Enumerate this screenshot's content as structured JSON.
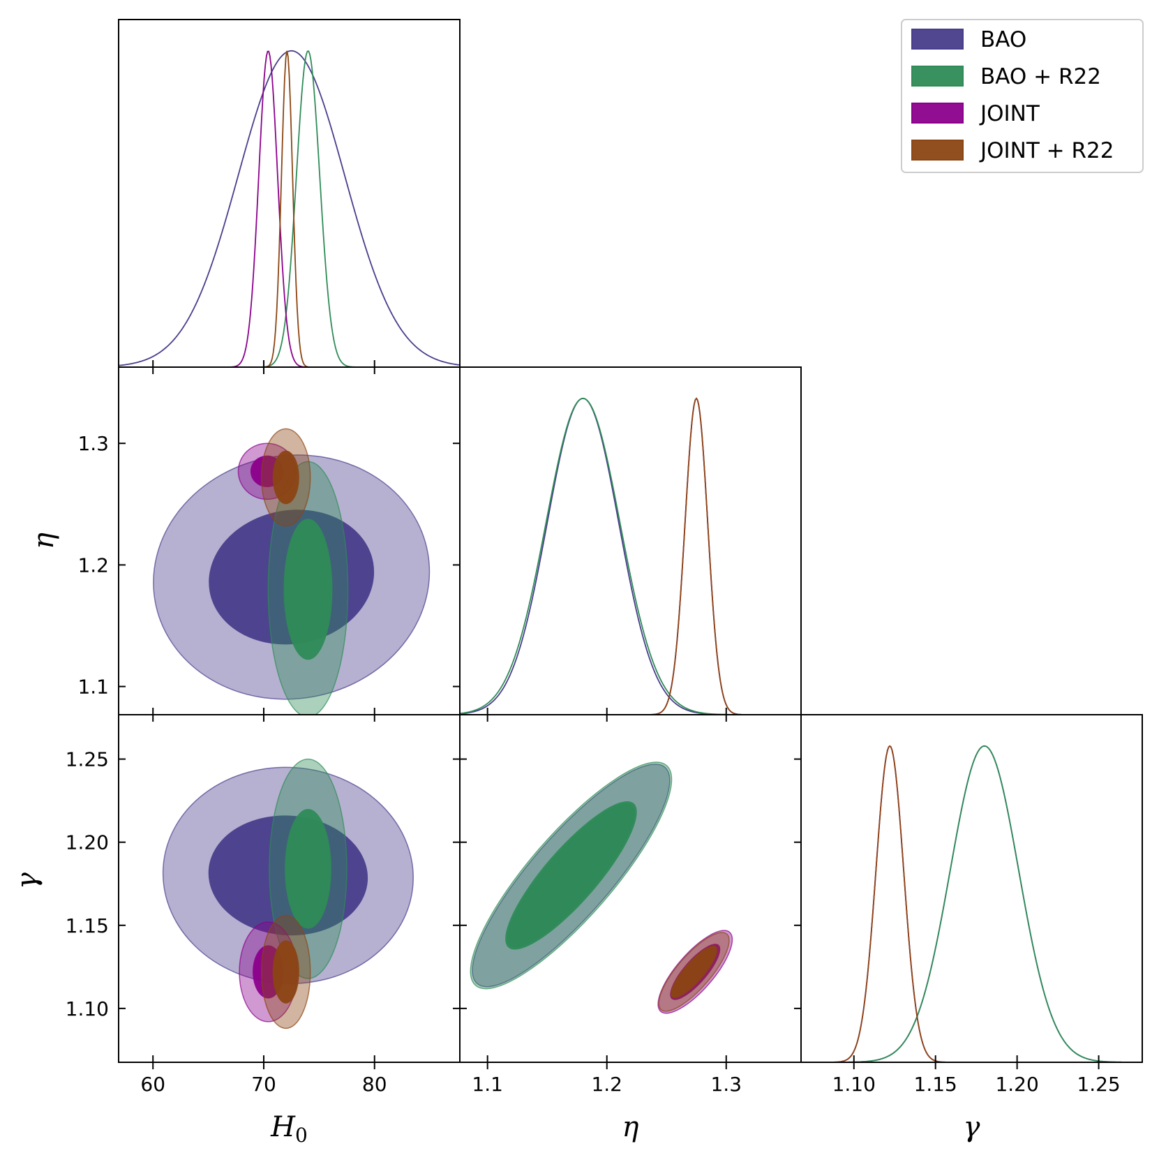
{
  "chart_data": {
    "type": "corner",
    "parameters": [
      {
        "key": "H0",
        "label": "H",
        "subscript": "0",
        "range": [
          56.9,
          87.7
        ],
        "ticks": [
          60,
          70,
          80
        ],
        "tick_labels": [
          "60",
          "70",
          "80"
        ]
      },
      {
        "key": "eta",
        "label": "η",
        "subscript": "",
        "range": [
          1.0768,
          1.3627
        ],
        "ticks": [
          1.1,
          1.2,
          1.3
        ],
        "tick_labels": [
          "1.1",
          "1.2",
          "1.3"
        ]
      },
      {
        "key": "gamma",
        "label": "γ",
        "subscript": "",
        "range": [
          1.0676,
          1.2767
        ],
        "ticks": [
          1.1,
          1.15,
          1.2,
          1.25
        ],
        "tick_labels": [
          "1.10",
          "1.15",
          "1.20",
          "1.25"
        ]
      }
    ],
    "series": [
      {
        "name": "BAO",
        "color": "#483d8b",
        "mean": {
          "H0": 72.5,
          "eta": 1.18,
          "gamma": 1.18
        },
        "sigma": {
          "H0": 4.8,
          "eta": 0.03,
          "gamma": 0.021
        },
        "contours": {
          "H0-eta": {
            "cx": 72.5,
            "cy": 1.19,
            "r68": [
              7.5,
              0.055
            ],
            "r95": [
              12.5,
              0.1
            ],
            "angle": -10
          },
          "H0-gamma": {
            "cx": 72.2,
            "cy": 1.18,
            "r68": [
              7.2,
              0.036
            ],
            "r95": [
              11.3,
              0.065
            ],
            "angle": 4
          },
          "eta-gamma": {
            "cx": 1.17,
            "cy": 1.18,
            "r68": [
              0.078,
              0.015
            ],
            "r95": [
              0.12,
              0.024
            ],
            "angle": -49
          }
        }
      },
      {
        "name": "BAO + R22",
        "color": "#2e8b57",
        "mean": {
          "H0": 74.0,
          "eta": 1.18,
          "gamma": 1.18
        },
        "sigma": {
          "H0": 1.05,
          "eta": 0.031,
          "gamma": 0.021
        },
        "contours": {
          "H0-eta": {
            "cx": 74.0,
            "cy": 1.18,
            "r68": [
              2.2,
              0.058
            ],
            "r95": [
              3.6,
              0.105
            ],
            "angle": 0
          },
          "H0-gamma": {
            "cx": 74.0,
            "cy": 1.184,
            "r68": [
              2.1,
              0.036
            ],
            "r95": [
              3.5,
              0.066
            ],
            "angle": 0
          },
          "eta-gamma": {
            "cx": 1.17,
            "cy": 1.18,
            "r68": [
              0.08,
              0.016
            ],
            "r95": [
              0.122,
              0.025
            ],
            "angle": -49
          }
        }
      },
      {
        "name": "JOINT",
        "color": "#8b008b",
        "mean": {
          "H0": 70.4,
          "eta": 1.275,
          "gamma": 1.122
        },
        "sigma": {
          "H0": 0.85,
          "eta": 0.0095,
          "gamma": 0.0085
        },
        "contours": {
          "H0-eta": {
            "cx": 70.3,
            "cy": 1.277,
            "r68": [
              1.5,
              0.013
            ],
            "r95": [
              2.6,
              0.023
            ],
            "angle": 0
          },
          "H0-gamma": {
            "cx": 70.4,
            "cy": 1.122,
            "r68": [
              1.4,
              0.016
            ],
            "r95": [
              2.6,
              0.03
            ],
            "angle": 0
          },
          "eta-gamma": {
            "cx": 1.274,
            "cy": 1.122,
            "r68": [
              0.03,
              0.007
            ],
            "r95": [
              0.044,
              0.011
            ],
            "angle": -49
          }
        }
      },
      {
        "name": "JOINT + R22",
        "color": "#8b4513",
        "mean": {
          "H0": 72.1,
          "eta": 1.275,
          "gamma": 1.122
        },
        "sigma": {
          "H0": 0.5,
          "eta": 0.0095,
          "gamma": 0.0085
        },
        "contours": {
          "H0-eta": {
            "cx": 72.0,
            "cy": 1.272,
            "r68": [
              1.2,
              0.022
            ],
            "r95": [
              2.2,
              0.04
            ],
            "angle": 0
          },
          "H0-gamma": {
            "cx": 72.0,
            "cy": 1.122,
            "r68": [
              1.2,
              0.019
            ],
            "r95": [
              2.2,
              0.034
            ],
            "angle": 0
          },
          "eta-gamma": {
            "cx": 1.273,
            "cy": 1.122,
            "r68": [
              0.028,
              0.006
            ],
            "r95": [
              0.042,
              0.01
            ],
            "angle": -49
          }
        }
      }
    ],
    "legend": {
      "position": "top-right",
      "entries": [
        "BAO",
        "BAO + R22",
        "JOINT",
        "JOINT + R22"
      ]
    }
  }
}
